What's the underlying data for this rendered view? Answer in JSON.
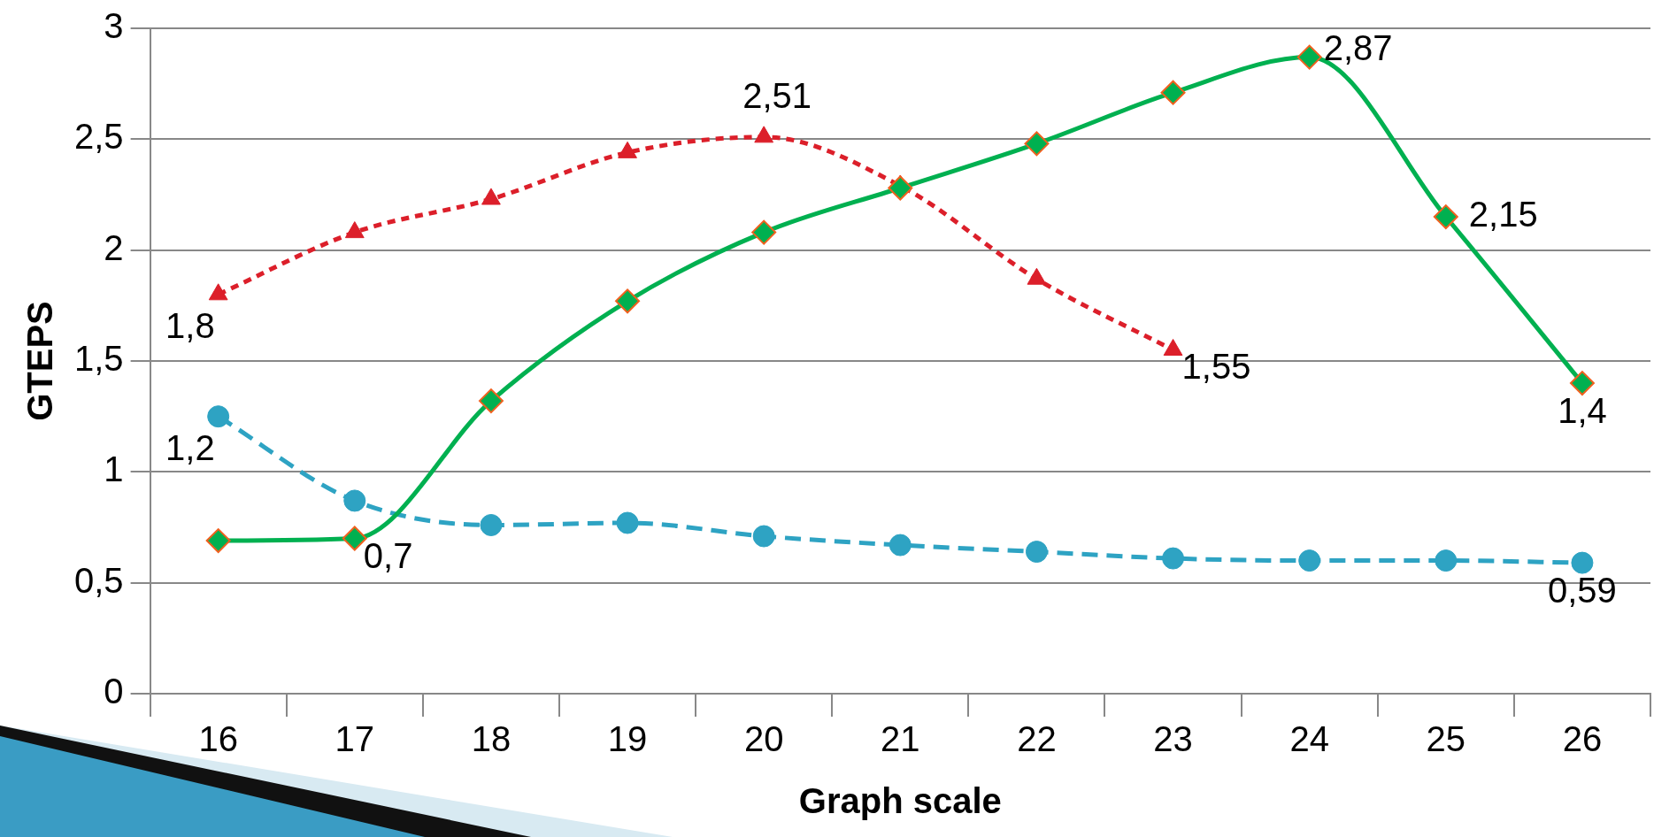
{
  "chart_data": {
    "type": "line",
    "xlabel": "Graph scale",
    "ylabel": "GTEPS",
    "categories": [
      "16",
      "17",
      "18",
      "19",
      "20",
      "21",
      "22",
      "23",
      "24",
      "25",
      "26"
    ],
    "series": [
      {
        "color": "#dc1f2a",
        "marker": "triangle",
        "line_style": "dotted",
        "values": [
          1.8,
          2.08,
          2.23,
          2.44,
          2.51,
          2.29,
          1.87,
          1.55,
          null,
          null,
          null
        ],
        "value_labels": [
          "1,8",
          null,
          null,
          null,
          "2,51",
          null,
          null,
          "1,55",
          null,
          null,
          null
        ]
      },
      {
        "color": "#2ea3c3",
        "marker": "circle",
        "line_style": "dashed",
        "values": [
          1.25,
          0.87,
          0.76,
          0.77,
          0.71,
          0.67,
          0.64,
          0.61,
          0.6,
          0.6,
          0.59
        ],
        "value_labels": [
          "1,2",
          null,
          null,
          null,
          null,
          null,
          null,
          null,
          null,
          null,
          "0,59"
        ]
      },
      {
        "color": "#00b050",
        "marker": "diamond",
        "line_style": "solid",
        "values": [
          0.69,
          0.7,
          1.32,
          1.77,
          2.08,
          2.28,
          2.48,
          2.71,
          2.87,
          2.15,
          1.4
        ],
        "value_labels": [
          null,
          "0,7",
          null,
          null,
          null,
          null,
          null,
          null,
          "2,87",
          "2,15",
          "1,4"
        ]
      }
    ],
    "ylim": [
      0,
      3
    ],
    "yticks": [
      0,
      {
        "value": 0.5,
        "label": "0,5"
      },
      1,
      {
        "value": 1.5,
        "label": "1,5"
      },
      2,
      {
        "value": 2.5,
        "label": "2,5"
      },
      3
    ],
    "grid": "y",
    "legend": false
  }
}
